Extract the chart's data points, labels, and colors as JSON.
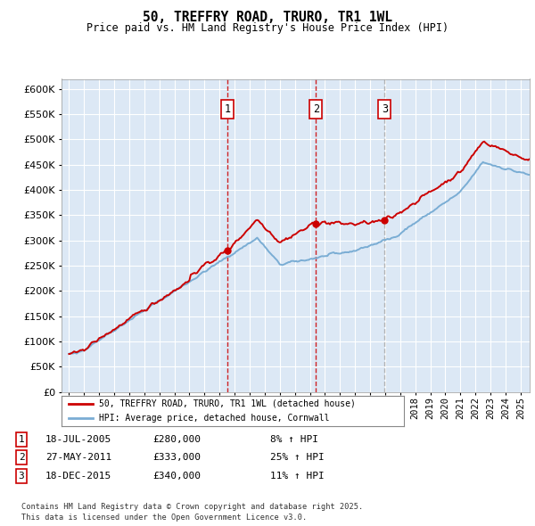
{
  "title": "50, TREFFRY ROAD, TRURO, TR1 1WL",
  "subtitle": "Price paid vs. HM Land Registry's House Price Index (HPI)",
  "bg_color": "#dce8f5",
  "fig_bg": "#ffffff",
  "line1_color": "#cc0000",
  "line2_color": "#7aadd4",
  "vline_color_red": "#cc0000",
  "vline_color_grey": "#aaaaaa",
  "grid_color": "#ffffff",
  "ylim": [
    0,
    620000
  ],
  "yticks": [
    0,
    50000,
    100000,
    150000,
    200000,
    250000,
    300000,
    350000,
    400000,
    450000,
    500000,
    550000,
    600000
  ],
  "ytick_labels": [
    "£0",
    "£50K",
    "£100K",
    "£150K",
    "£200K",
    "£250K",
    "£300K",
    "£350K",
    "£400K",
    "£450K",
    "£500K",
    "£550K",
    "£600K"
  ],
  "xmin": 1994.5,
  "xmax": 2025.6,
  "sales": [
    {
      "num": 1,
      "date": "18-JUL-2005",
      "price": 280000,
      "hpi_pct": "8%",
      "x": 2005.54,
      "vline": "red"
    },
    {
      "num": 2,
      "date": "27-MAY-2011",
      "price": 333000,
      "hpi_pct": "25%",
      "x": 2011.4,
      "vline": "red"
    },
    {
      "num": 3,
      "date": "18-DEC-2015",
      "price": 340000,
      "hpi_pct": "11%",
      "x": 2015.96,
      "vline": "grey"
    }
  ],
  "legend1_label": "50, TREFFRY ROAD, TRURO, TR1 1WL (detached house)",
  "legend2_label": "HPI: Average price, detached house, Cornwall",
  "footnote_line1": "Contains HM Land Registry data © Crown copyright and database right 2025.",
  "footnote_line2": "This data is licensed under the Open Government Licence v3.0.",
  "sale_box_edge": "#cc0000"
}
